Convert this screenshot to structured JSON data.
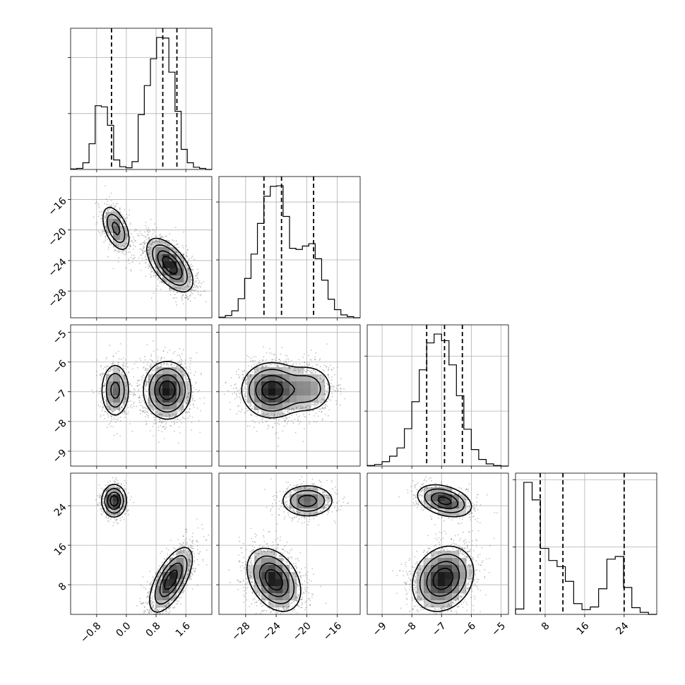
{
  "chart_data": {
    "type": "corner",
    "title": "",
    "parameters": [
      {
        "label": "",
        "range": [
          -1.5,
          2.3
        ],
        "ticks": [
          -0.8,
          0.0,
          0.8,
          1.6
        ],
        "tick_labels": [
          "−0.8",
          "0.0",
          "0.8",
          "1.6"
        ],
        "quantiles": [
          -0.4,
          0.98,
          1.36
        ]
      },
      {
        "label": "",
        "range": [
          -31.5,
          -13.0
        ],
        "ticks": [
          -28,
          -24,
          -20,
          -16
        ],
        "tick_labels": [
          "−28",
          "−24",
          "−20",
          "−16"
        ],
        "quantiles": [
          -25.6,
          -23.3,
          -19.1
        ]
      },
      {
        "label": "",
        "range": [
          -9.5,
          -4.75
        ],
        "ticks": [
          -9,
          -8,
          -7,
          -6,
          -5
        ],
        "tick_labels": [
          "−9",
          "−8",
          "−7",
          "−6",
          "−5"
        ],
        "quantiles": [
          -7.5,
          -6.9,
          -6.3
        ]
      },
      {
        "label": "",
        "range": [
          2.0,
          30.6
        ],
        "ticks": [
          8,
          16,
          24
        ],
        "tick_labels": [
          "8",
          "16",
          "24"
        ],
        "quantiles": [
          7.0,
          11.6,
          24.0
        ]
      }
    ],
    "histograms": [
      {
        "param": 0,
        "counts": [
          1,
          2,
          12,
          46,
          114,
          112,
          79,
          17,
          5,
          3,
          14,
          98,
          150,
          198,
          236,
          235,
          174,
          104,
          36,
          12,
          4,
          2,
          0
        ]
      },
      {
        "param": 1,
        "counts": [
          1,
          4,
          12,
          33,
          68,
          110,
          163,
          210,
          227,
          228,
          175,
          120,
          118,
          124,
          128,
          102,
          65,
          32,
          14,
          5,
          2,
          0
        ]
      },
      {
        "param": 2,
        "counts": [
          1,
          3,
          8,
          18,
          33,
          68,
          117,
          175,
          224,
          240,
          228,
          184,
          128,
          67,
          30,
          12,
          4,
          1,
          0
        ]
      },
      {
        "param": 3,
        "counts": [
          8,
          196,
          170,
          98,
          80,
          71,
          49,
          16,
          7,
          11,
          38,
          82,
          86,
          40,
          10,
          3,
          0
        ]
      }
    ],
    "pairs": [
      {
        "x": 0,
        "y": 1,
        "modes": [
          {
            "cx": -0.28,
            "cy": -19.8,
            "sx": 0.19,
            "sy": 1.5,
            "rho": -0.5,
            "w": 0.28
          },
          {
            "cx": 1.17,
            "cy": -24.6,
            "sx": 0.3,
            "sy": 1.7,
            "rho": -0.6,
            "w": 0.72
          }
        ]
      },
      {
        "x": 0,
        "y": 2,
        "modes": [
          {
            "cx": -0.3,
            "cy": -6.95,
            "sx": 0.19,
            "sy": 0.45,
            "rho": 0.0,
            "w": 0.28
          },
          {
            "cx": 1.1,
            "cy": -6.95,
            "sx": 0.31,
            "sy": 0.47,
            "rho": 0.0,
            "w": 0.72
          }
        ]
      },
      {
        "x": 0,
        "y": 3,
        "modes": [
          {
            "cx": -0.33,
            "cy": 25.0,
            "sx": 0.16,
            "sy": 1.6,
            "rho": 0.0,
            "w": 0.28
          },
          {
            "cx": 1.2,
            "cy": 9.0,
            "sx": 0.28,
            "sy": 3.2,
            "rho": 0.65,
            "w": 0.72
          }
        ]
      },
      {
        "x": 1,
        "y": 2,
        "modes": [
          {
            "cx": -24.6,
            "cy": -6.95,
            "sx": 1.9,
            "sy": 0.45,
            "rho": 0.0,
            "w": 0.72
          },
          {
            "cx": -19.8,
            "cy": -6.9,
            "sx": 1.7,
            "sy": 0.42,
            "rho": 0.0,
            "w": 0.28
          }
        ]
      },
      {
        "x": 1,
        "y": 3,
        "modes": [
          {
            "cx": -24.3,
            "cy": 9.0,
            "sx": 1.7,
            "sy": 3.1,
            "rho": -0.35,
            "w": 0.72
          },
          {
            "cx": -19.9,
            "cy": 25.0,
            "sx": 1.7,
            "sy": 1.6,
            "rho": 0.0,
            "w": 0.28
          }
        ]
      },
      {
        "x": 2,
        "y": 3,
        "modes": [
          {
            "cx": -6.95,
            "cy": 9.2,
            "sx": 0.5,
            "sy": 3.2,
            "rho": 0.2,
            "w": 0.72
          },
          {
            "cx": -6.9,
            "cy": 25.0,
            "sx": 0.45,
            "sy": 1.6,
            "rho": -0.35,
            "w": 0.28
          }
        ]
      }
    ],
    "grid": true,
    "contour_levels": [
      0.25,
      0.5,
      0.75,
      0.9
    ]
  }
}
